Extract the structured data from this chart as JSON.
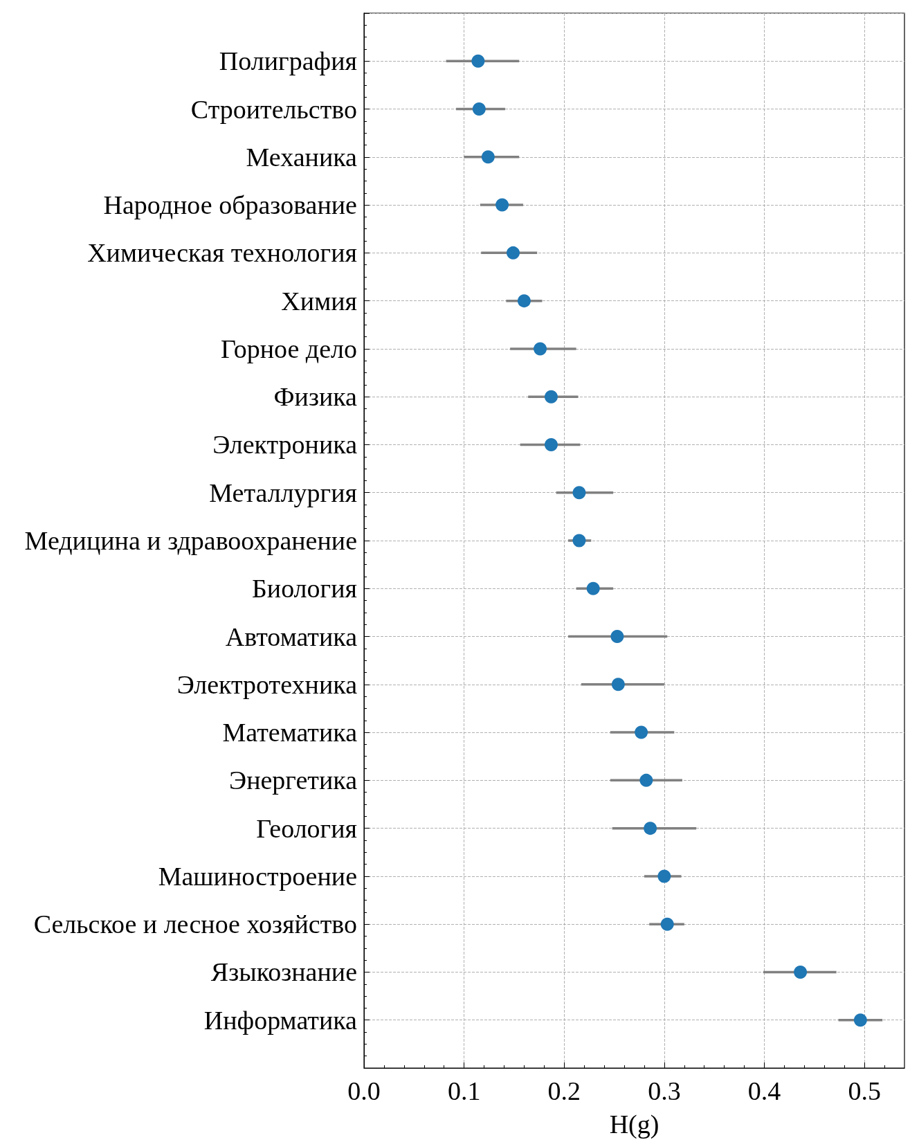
{
  "chart_data": {
    "type": "scatter",
    "xlabel": "H(g)",
    "categories": [
      "Полиграфия",
      "Строительство",
      "Механика",
      "Народное образование",
      "Химическая технология",
      "Химия",
      "Горное дело",
      "Физика",
      "Электроника",
      "Металлургия",
      "Медицина и здравоохранение",
      "Биология",
      "Автоматика",
      "Электротехника",
      "Математика",
      "Энергетика",
      "Геология",
      "Машиностроение",
      "Сельское и лесное хозяйство",
      "Языкознание",
      "Информатика"
    ],
    "series": [
      {
        "color": "#1f77b4",
        "values": [
          0.114,
          0.115,
          0.124,
          0.138,
          0.149,
          0.16,
          0.176,
          0.187,
          0.187,
          0.215,
          0.215,
          0.229,
          0.253,
          0.254,
          0.277,
          0.282,
          0.286,
          0.3,
          0.303,
          0.436,
          0.496
        ],
        "errors": [
          [
            0.082,
            0.155
          ],
          [
            0.092,
            0.141
          ],
          [
            0.1,
            0.155
          ],
          [
            0.116,
            0.159
          ],
          [
            0.117,
            0.173
          ],
          [
            0.142,
            0.178
          ],
          [
            0.146,
            0.212
          ],
          [
            0.164,
            0.214
          ],
          [
            0.156,
            0.216
          ],
          [
            0.192,
            0.249
          ],
          [
            0.204,
            0.227
          ],
          [
            0.212,
            0.249
          ],
          [
            0.204,
            0.303
          ],
          [
            0.217,
            0.3
          ],
          [
            0.246,
            0.31
          ],
          [
            0.246,
            0.318
          ],
          [
            0.248,
            0.332
          ],
          [
            0.28,
            0.317
          ],
          [
            0.285,
            0.32
          ],
          [
            0.399,
            0.472
          ],
          [
            0.474,
            0.518
          ]
        ]
      }
    ],
    "xlim": [
      0,
      0.54
    ],
    "xticks": [
      {
        "value": 0,
        "label": "0.0"
      },
      {
        "value": 0.1,
        "label": "0.1"
      },
      {
        "value": 0.2,
        "label": "0.2"
      },
      {
        "value": 0.3,
        "label": "0.3"
      },
      {
        "value": 0.4,
        "label": "0.4"
      },
      {
        "value": 0.5,
        "label": "0.5"
      }
    ],
    "grid": true,
    "marker": "circle",
    "orientation": "horizontal"
  }
}
